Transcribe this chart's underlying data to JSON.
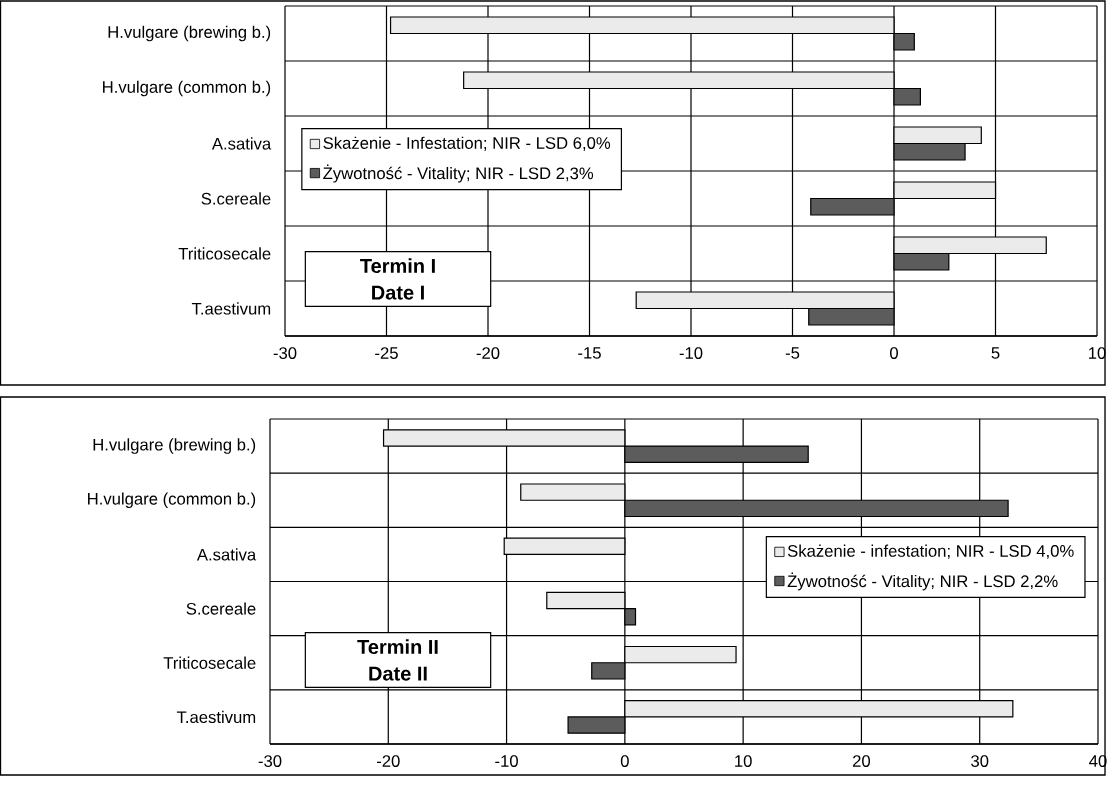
{
  "chart_data": [
    {
      "type": "bar",
      "orientation": "horizontal",
      "categories": [
        "H.vulgare (brewing b.)",
        "H.vulgare (common b.)",
        "A.sativa",
        "S.cereale",
        "Triticosecale",
        "T.aestivum"
      ],
      "series": [
        {
          "name": "Skażenie - Infestation; NIR - LSD 6,0%",
          "color": "#ebebeb",
          "values": [
            -24.8,
            -21.2,
            4.3,
            5.0,
            7.5,
            -12.7
          ]
        },
        {
          "name": "Żywotność - Vitality; NIR - LSD 2,3%",
          "color": "#5c5c5c",
          "values": [
            1.0,
            1.3,
            3.5,
            -4.1,
            2.7,
            -4.2
          ]
        }
      ],
      "xlim": [
        -30,
        10
      ],
      "xticks": [
        -30,
        -25,
        -20,
        -15,
        -10,
        -5,
        0,
        5,
        10
      ],
      "grid": true,
      "legend": "left",
      "annotations": [
        "Termin I",
        "Date I"
      ]
    },
    {
      "type": "bar",
      "orientation": "horizontal",
      "categories": [
        "H.vulgare (brewing b.)",
        "H.vulgare (common b.)",
        "A.sativa",
        "S.cereale",
        "Triticosecale",
        "T.aestivum"
      ],
      "series": [
        {
          "name": "Skażenie - infestation; NIR - LSD 4,0%",
          "color": "#ebebeb",
          "values": [
            -20.4,
            -8.8,
            -10.2,
            -6.6,
            9.4,
            32.8
          ]
        },
        {
          "name": "Żywotność - Vitality; NIR - LSD 2,2%",
          "color": "#5c5c5c",
          "values": [
            15.5,
            32.4,
            null,
            0.9,
            -2.8,
            -4.8
          ]
        }
      ],
      "xlim": [
        -30,
        40
      ],
      "xticks": [
        -30,
        -20,
        -10,
        0,
        10,
        20,
        30,
        40
      ],
      "grid": true,
      "legend": "right",
      "annotations": [
        "Termin II",
        "Date II"
      ]
    }
  ]
}
